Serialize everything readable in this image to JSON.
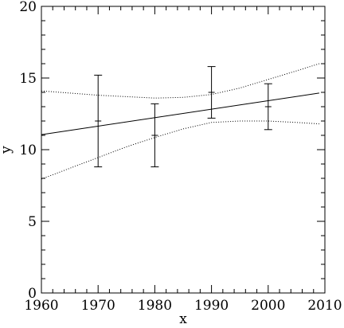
{
  "chart_data": {
    "type": "scatter",
    "title": "",
    "xlabel": "x",
    "ylabel": "y",
    "xlim": [
      1960,
      2010
    ],
    "ylim": [
      0,
      20
    ],
    "x_ticks": [
      1960,
      1970,
      1980,
      1990,
      2000,
      2010
    ],
    "y_ticks": [
      0,
      5,
      10,
      15,
      20
    ],
    "x_minor_step": 2,
    "y_minor_step": 1,
    "grid": false,
    "legend": "none",
    "points": [
      {
        "x": 1970,
        "y": 12.0,
        "low": 8.8,
        "high": 15.2
      },
      {
        "x": 1980,
        "y": 11.0,
        "low": 8.8,
        "high": 13.2
      },
      {
        "x": 1990,
        "y": 14.0,
        "low": 12.2,
        "high": 15.8
      },
      {
        "x": 2000,
        "y": 13.0,
        "low": 11.4,
        "high": 14.6
      }
    ],
    "fit_line": {
      "x": [
        1960,
        2009
      ],
      "y": [
        11.05,
        13.95
      ]
    },
    "confidence_upper": {
      "x": [
        1960,
        1965,
        1970,
        1975,
        1980,
        1985,
        1990,
        1995,
        2000,
        2005,
        2009
      ],
      "y": [
        14.1,
        13.95,
        13.8,
        13.7,
        13.6,
        13.65,
        13.85,
        14.3,
        14.9,
        15.5,
        16.0
      ]
    },
    "confidence_lower": {
      "x": [
        1960,
        1965,
        1970,
        1975,
        1980,
        1985,
        1990,
        1995,
        2000,
        2005,
        2009
      ],
      "y": [
        7.95,
        8.7,
        9.45,
        10.2,
        10.85,
        11.45,
        11.9,
        12.0,
        12.0,
        11.9,
        11.8
      ]
    }
  }
}
